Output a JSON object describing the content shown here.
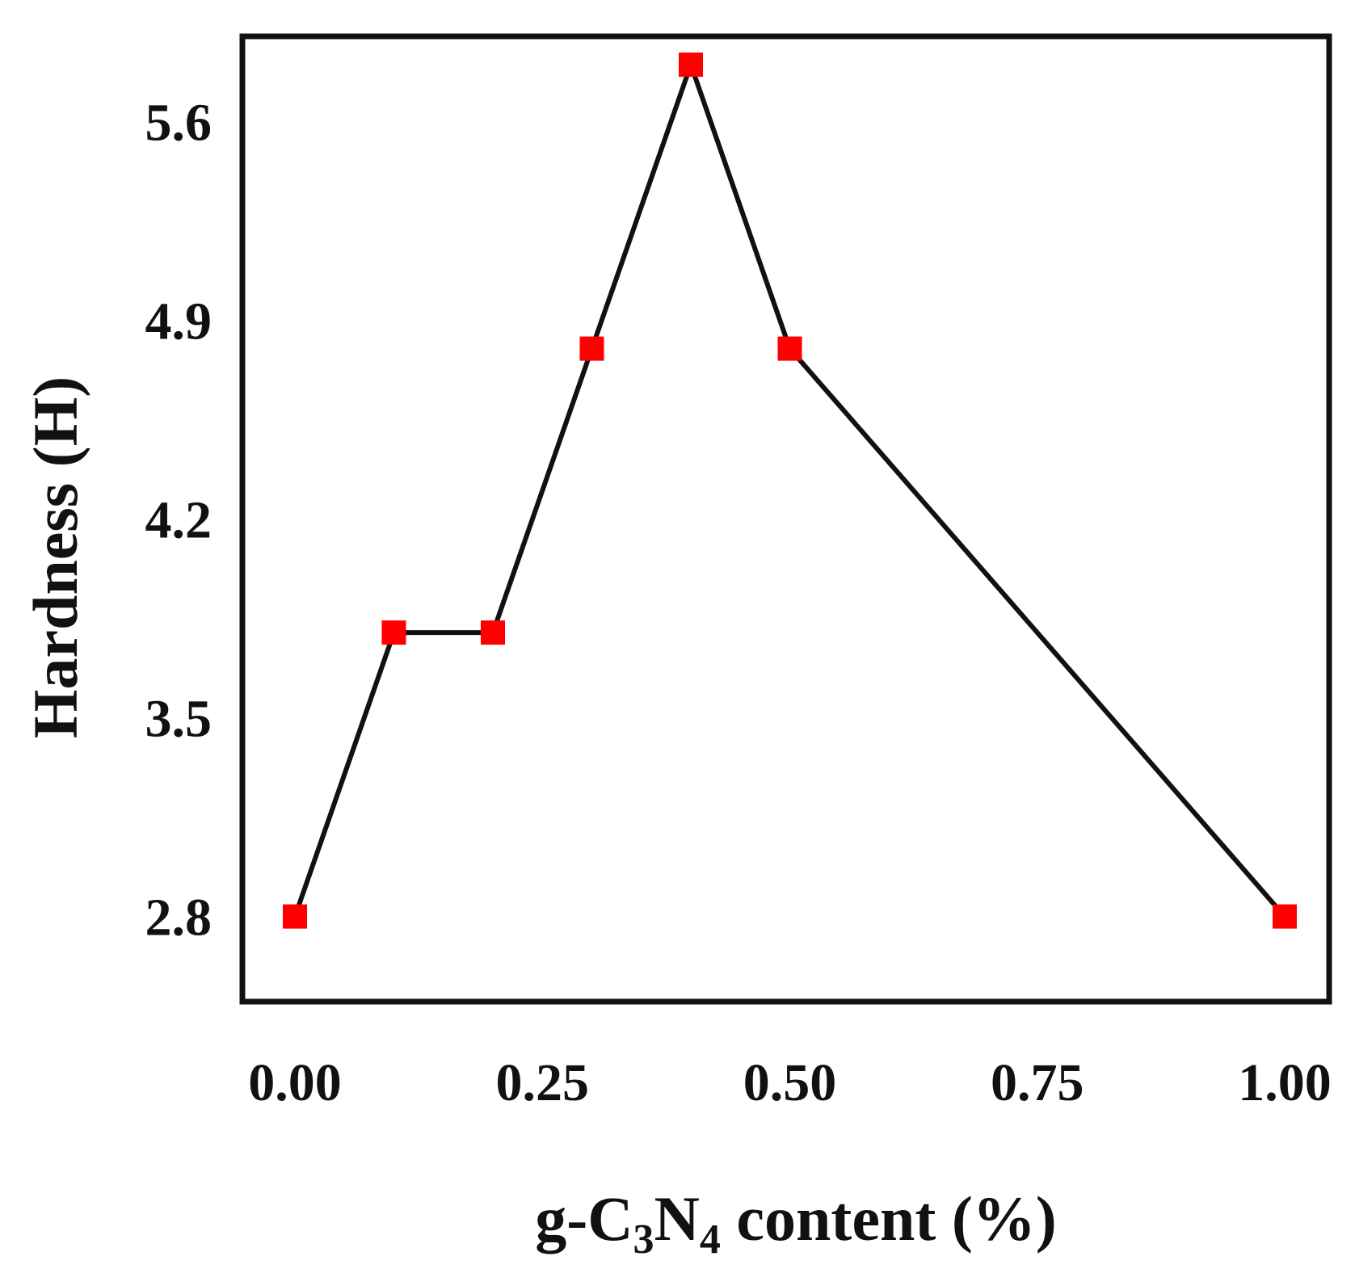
{
  "chart_data": {
    "type": "line",
    "xlabel": {
      "prefix": "g-C",
      "sub1": "3",
      "mid": "N",
      "sub2": "4",
      "suffix": " content (%)"
    },
    "ylabel": "Hardness (H)",
    "xlim": [
      0.0,
      1.0
    ],
    "ylim": [
      2.5,
      5.9
    ],
    "xticks": [
      0.0,
      0.25,
      0.5,
      0.75,
      1.0
    ],
    "xtick_labels": [
      "0.00",
      "0.25",
      "0.50",
      "0.75",
      "1.00"
    ],
    "yticks": [
      2.8,
      3.5,
      4.2,
      4.9,
      5.6
    ],
    "ytick_labels": [
      "2.8",
      "3.5",
      "4.2",
      "4.9",
      "5.6"
    ],
    "grid": false,
    "legend": "none",
    "series": [
      {
        "x": [
          0.0,
          0.1,
          0.2,
          0.3,
          0.4,
          0.5,
          1.0
        ],
        "values": [
          2.8,
          3.8,
          3.8,
          4.8,
          5.8,
          4.8,
          2.8
        ],
        "line_color": "#111111",
        "marker": "square",
        "marker_color": "#ff0000"
      }
    ]
  }
}
